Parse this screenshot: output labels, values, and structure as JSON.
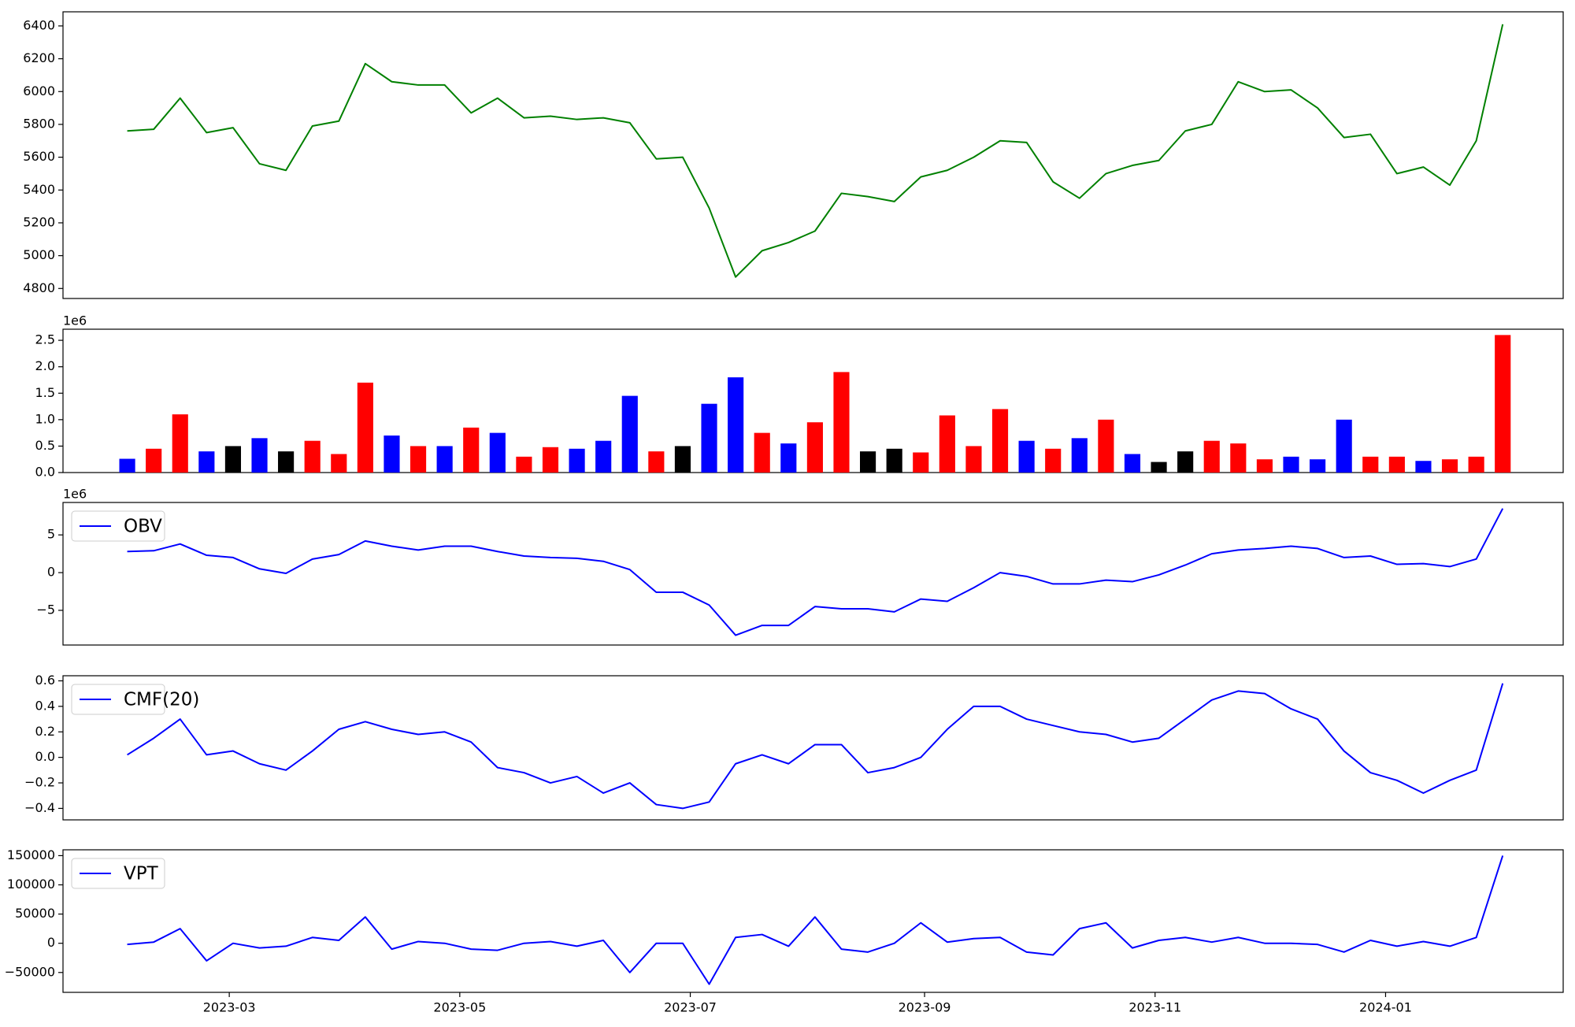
{
  "chart_data": [
    {
      "type": "line",
      "color": "#008000",
      "x": [
        "2023-02-02",
        "2023-02-09",
        "2023-02-16",
        "2023-02-23",
        "2023-03-02",
        "2023-03-09",
        "2023-03-16",
        "2023-03-23",
        "2023-03-30",
        "2023-04-06",
        "2023-04-13",
        "2023-04-20",
        "2023-04-27",
        "2023-05-04",
        "2023-05-11",
        "2023-05-18",
        "2023-05-25",
        "2023-06-01",
        "2023-06-08",
        "2023-06-15",
        "2023-06-22",
        "2023-06-29",
        "2023-07-06",
        "2023-07-13",
        "2023-07-20",
        "2023-07-27",
        "2023-08-03",
        "2023-08-10",
        "2023-08-17",
        "2023-08-24",
        "2023-08-31",
        "2023-09-07",
        "2023-09-14",
        "2023-09-21",
        "2023-09-28",
        "2023-10-05",
        "2023-10-12",
        "2023-10-19",
        "2023-10-26",
        "2023-11-02",
        "2023-11-09",
        "2023-11-16",
        "2023-11-23",
        "2023-11-30",
        "2023-12-07",
        "2023-12-14",
        "2023-12-21",
        "2023-12-28",
        "2024-01-04",
        "2024-01-11",
        "2024-01-18",
        "2024-01-25",
        "2024-02-01"
      ],
      "values": [
        5760,
        5770,
        5960,
        5750,
        5780,
        5560,
        5520,
        5790,
        5820,
        6170,
        6060,
        6040,
        6040,
        5870,
        5960,
        5840,
        5850,
        5830,
        5840,
        5810,
        5590,
        5600,
        5290,
        4870,
        5030,
        5080,
        5150,
        5380,
        5360,
        5330,
        5480,
        5520,
        5600,
        5700,
        5690,
        5450,
        5350,
        5500,
        5550,
        5580,
        5760,
        5800,
        6060,
        6000,
        6010,
        5900,
        5720,
        5740,
        5500,
        5540,
        5430,
        5700,
        6410
      ],
      "xlim": [
        "2023-01-16",
        "2024-02-17"
      ],
      "ylim": [
        4739,
        6486
      ],
      "yticks": [
        4800,
        5000,
        5200,
        5400,
        5600,
        5800,
        6000,
        6200,
        6400
      ]
    },
    {
      "type": "bar",
      "x": [
        "2023-02-02",
        "2023-02-09",
        "2023-02-16",
        "2023-02-23",
        "2023-03-02",
        "2023-03-09",
        "2023-03-16",
        "2023-03-23",
        "2023-03-30",
        "2023-04-06",
        "2023-04-13",
        "2023-04-20",
        "2023-04-27",
        "2023-05-04",
        "2023-05-11",
        "2023-05-18",
        "2023-05-25",
        "2023-06-01",
        "2023-06-08",
        "2023-06-15",
        "2023-06-22",
        "2023-06-29",
        "2023-07-06",
        "2023-07-13",
        "2023-07-20",
        "2023-07-27",
        "2023-08-03",
        "2023-08-10",
        "2023-08-17",
        "2023-08-24",
        "2023-08-31",
        "2023-09-07",
        "2023-09-14",
        "2023-09-21",
        "2023-09-28",
        "2023-10-05",
        "2023-10-12",
        "2023-10-19",
        "2023-10-26",
        "2023-11-02",
        "2023-11-09",
        "2023-11-16",
        "2023-11-23",
        "2023-11-30",
        "2023-12-07",
        "2023-12-14",
        "2023-12-21",
        "2023-12-28",
        "2024-01-04",
        "2024-01-11",
        "2024-01-18",
        "2024-01-25",
        "2024-02-01"
      ],
      "values": [
        260000,
        450000,
        1100000,
        400000,
        500000,
        650000,
        400000,
        600000,
        350000,
        1700000,
        700000,
        500000,
        500000,
        850000,
        750000,
        300000,
        480000,
        450000,
        600000,
        1450000,
        400000,
        500000,
        1300000,
        1800000,
        750000,
        550000,
        950000,
        1900000,
        400000,
        450000,
        380000,
        1080000,
        500000,
        1200000,
        600000,
        450000,
        650000,
        1000000,
        350000,
        200000,
        400000,
        600000,
        550000,
        250000,
        300000,
        250000,
        1000000,
        300000,
        300000,
        220000,
        250000,
        300000,
        2600000
      ],
      "colors": [
        "#0000ff",
        "#ff0000",
        "#ff0000",
        "#0000ff",
        "#000000",
        "#0000ff",
        "#000000",
        "#ff0000",
        "#ff0000",
        "#ff0000",
        "#0000ff",
        "#ff0000",
        "#0000ff",
        "#ff0000",
        "#0000ff",
        "#ff0000",
        "#ff0000",
        "#0000ff",
        "#0000ff",
        "#0000ff",
        "#ff0000",
        "#000000",
        "#0000ff",
        "#0000ff",
        "#ff0000",
        "#0000ff",
        "#ff0000",
        "#ff0000",
        "#000000",
        "#000000",
        "#ff0000",
        "#ff0000",
        "#ff0000",
        "#ff0000",
        "#0000ff",
        "#ff0000",
        "#0000ff",
        "#ff0000",
        "#0000ff",
        "#000000",
        "#000000",
        "#ff0000",
        "#ff0000",
        "#ff0000",
        "#0000ff",
        "#0000ff",
        "#0000ff",
        "#ff0000",
        "#ff0000",
        "#0000ff",
        "#ff0000",
        "#ff0000",
        "#ff0000"
      ],
      "xlim": [
        "2023-01-16",
        "2024-02-17"
      ],
      "ylim": [
        0,
        2710000
      ],
      "y_offset_label": "1e6",
      "yticks": [
        {
          "value": 0,
          "label": "0.0"
        },
        {
          "value": 500000,
          "label": "0.5"
        },
        {
          "value": 1000000,
          "label": "1.0"
        },
        {
          "value": 1500000,
          "label": "1.5"
        },
        {
          "value": 2000000,
          "label": "2.0"
        },
        {
          "value": 2500000,
          "label": "2.5"
        }
      ]
    },
    {
      "type": "line",
      "legend": "upper left",
      "x": [
        "2023-02-02",
        "2023-02-09",
        "2023-02-16",
        "2023-02-23",
        "2023-03-02",
        "2023-03-09",
        "2023-03-16",
        "2023-03-23",
        "2023-03-30",
        "2023-04-06",
        "2023-04-13",
        "2023-04-20",
        "2023-04-27",
        "2023-05-04",
        "2023-05-11",
        "2023-05-18",
        "2023-05-25",
        "2023-06-01",
        "2023-06-08",
        "2023-06-15",
        "2023-06-22",
        "2023-06-29",
        "2023-07-06",
        "2023-07-13",
        "2023-07-20",
        "2023-07-27",
        "2023-08-03",
        "2023-08-10",
        "2023-08-17",
        "2023-08-24",
        "2023-08-31",
        "2023-09-07",
        "2023-09-14",
        "2023-09-21",
        "2023-09-28",
        "2023-10-05",
        "2023-10-12",
        "2023-10-19",
        "2023-10-26",
        "2023-11-02",
        "2023-11-09",
        "2023-11-16",
        "2023-11-23",
        "2023-11-30",
        "2023-12-07",
        "2023-12-14",
        "2023-12-21",
        "2023-12-28",
        "2024-01-04",
        "2024-01-11",
        "2024-01-18",
        "2024-01-25",
        "2024-02-01"
      ],
      "series": [
        {
          "name": "OBV",
          "color": "#0000ff",
          "values": [
            2800000,
            2900000,
            3800000,
            2300000,
            2000000,
            500000,
            -100000,
            1800000,
            2400000,
            4200000,
            3500000,
            3000000,
            3500000,
            3500000,
            2800000,
            2200000,
            2000000,
            1900000,
            1500000,
            400000,
            -2600000,
            -2600000,
            -4300000,
            -8300000,
            -7000000,
            -7000000,
            -4500000,
            -4800000,
            -4800000,
            -5200000,
            -3500000,
            -3800000,
            -2000000,
            0,
            -500000,
            -1500000,
            -1500000,
            -1000000,
            -1200000,
            -300000,
            1000000,
            2500000,
            3000000,
            3200000,
            3500000,
            3200000,
            2000000,
            2200000,
            1100000,
            1200000,
            800000,
            1800000,
            8500000
          ]
        }
      ],
      "xlim": [
        "2023-01-16",
        "2024-02-17"
      ],
      "ylim": [
        -9600000,
        9300000
      ],
      "y_offset_label": "1e6",
      "yticks": [
        {
          "value": -5000000,
          "label": "−5"
        },
        {
          "value": 0,
          "label": "0"
        },
        {
          "value": 5000000,
          "label": "5"
        }
      ]
    },
    {
      "type": "line",
      "legend": "upper left",
      "x": [
        "2023-02-02",
        "2023-02-09",
        "2023-02-16",
        "2023-02-23",
        "2023-03-02",
        "2023-03-09",
        "2023-03-16",
        "2023-03-23",
        "2023-03-30",
        "2023-04-06",
        "2023-04-13",
        "2023-04-20",
        "2023-04-27",
        "2023-05-04",
        "2023-05-11",
        "2023-05-18",
        "2023-05-25",
        "2023-06-01",
        "2023-06-08",
        "2023-06-15",
        "2023-06-22",
        "2023-06-29",
        "2023-07-06",
        "2023-07-13",
        "2023-07-20",
        "2023-07-27",
        "2023-08-03",
        "2023-08-10",
        "2023-08-17",
        "2023-08-24",
        "2023-08-31",
        "2023-09-07",
        "2023-09-14",
        "2023-09-21",
        "2023-09-28",
        "2023-10-05",
        "2023-10-12",
        "2023-10-19",
        "2023-10-26",
        "2023-11-02",
        "2023-11-09",
        "2023-11-16",
        "2023-11-23",
        "2023-11-30",
        "2023-12-07",
        "2023-12-14",
        "2023-12-21",
        "2023-12-28",
        "2024-01-04",
        "2024-01-11",
        "2024-01-18",
        "2024-01-25",
        "2024-02-01"
      ],
      "series": [
        {
          "name": "CMF(20)",
          "color": "#0000ff",
          "values": [
            0.02,
            0.15,
            0.3,
            0.02,
            0.05,
            -0.05,
            -0.1,
            0.05,
            0.22,
            0.28,
            0.22,
            0.18,
            0.2,
            0.12,
            -0.08,
            -0.12,
            -0.2,
            -0.15,
            -0.28,
            -0.2,
            -0.37,
            -0.4,
            -0.35,
            -0.05,
            0.02,
            -0.05,
            0.1,
            0.1,
            -0.12,
            -0.08,
            0,
            0.22,
            0.4,
            0.4,
            0.3,
            0.25,
            0.2,
            0.18,
            0.12,
            0.15,
            0.3,
            0.45,
            0.52,
            0.5,
            0.38,
            0.3,
            0.05,
            -0.12,
            -0.18,
            -0.28,
            -0.18,
            -0.1,
            0.58
          ]
        }
      ],
      "xlim": [
        "2023-01-16",
        "2024-02-17"
      ],
      "ylim": [
        -0.49,
        0.64
      ],
      "yticks": [
        {
          "value": -0.4,
          "label": "−0.4"
        },
        {
          "value": -0.2,
          "label": "−0.2"
        },
        {
          "value": 0,
          "label": "0.0"
        },
        0.2,
        0.4,
        0.6
      ]
    },
    {
      "type": "line",
      "legend": "upper left",
      "x": [
        "2023-02-02",
        "2023-02-09",
        "2023-02-16",
        "2023-02-23",
        "2023-03-02",
        "2023-03-09",
        "2023-03-16",
        "2023-03-23",
        "2023-03-30",
        "2023-04-06",
        "2023-04-13",
        "2023-04-20",
        "2023-04-27",
        "2023-05-04",
        "2023-05-11",
        "2023-05-18",
        "2023-05-25",
        "2023-06-01",
        "2023-06-08",
        "2023-06-15",
        "2023-06-22",
        "2023-06-29",
        "2023-07-06",
        "2023-07-13",
        "2023-07-20",
        "2023-07-27",
        "2023-08-03",
        "2023-08-10",
        "2023-08-17",
        "2023-08-24",
        "2023-08-31",
        "2023-09-07",
        "2023-09-14",
        "2023-09-21",
        "2023-09-28",
        "2023-10-05",
        "2023-10-12",
        "2023-10-19",
        "2023-10-26",
        "2023-11-02",
        "2023-11-09",
        "2023-11-16",
        "2023-11-23",
        "2023-11-30",
        "2023-12-07",
        "2023-12-14",
        "2023-12-21",
        "2023-12-28",
        "2024-01-04",
        "2024-01-11",
        "2024-01-18",
        "2024-01-25",
        "2024-02-01"
      ],
      "series": [
        {
          "name": "VPT",
          "color": "#0000ff",
          "values": [
            -2000,
            2000,
            25000,
            -30000,
            0,
            -8000,
            -5000,
            10000,
            5000,
            45000,
            -10000,
            3000,
            0,
            -10000,
            -12000,
            0,
            3000,
            -5000,
            5000,
            -50000,
            0,
            0,
            -70000,
            10000,
            15000,
            -5000,
            45000,
            -10000,
            -15000,
            0,
            35000,
            2000,
            8000,
            10000,
            -15000,
            -20000,
            25000,
            35000,
            -8000,
            5000,
            10000,
            2000,
            10000,
            0,
            0,
            -2000,
            -15000,
            5000,
            -5000,
            3000,
            -5000,
            10000,
            150000
          ]
        }
      ],
      "xlim": [
        "2023-01-16",
        "2024-02-17"
      ],
      "ylim": [
        -84000,
        160000
      ],
      "yticks": [
        {
          "value": -50000,
          "label": "−50000"
        },
        0,
        50000,
        100000,
        150000
      ],
      "xticks": [
        {
          "value": "2023-03-01",
          "label": "2023-03"
        },
        {
          "value": "2023-05-01",
          "label": "2023-05"
        },
        {
          "value": "2023-07-01",
          "label": "2023-07"
        },
        {
          "value": "2023-09-01",
          "label": "2023-09"
        },
        {
          "value": "2023-11-01",
          "label": "2023-11"
        },
        {
          "value": "2024-01-01",
          "label": "2024-01"
        }
      ]
    }
  ]
}
